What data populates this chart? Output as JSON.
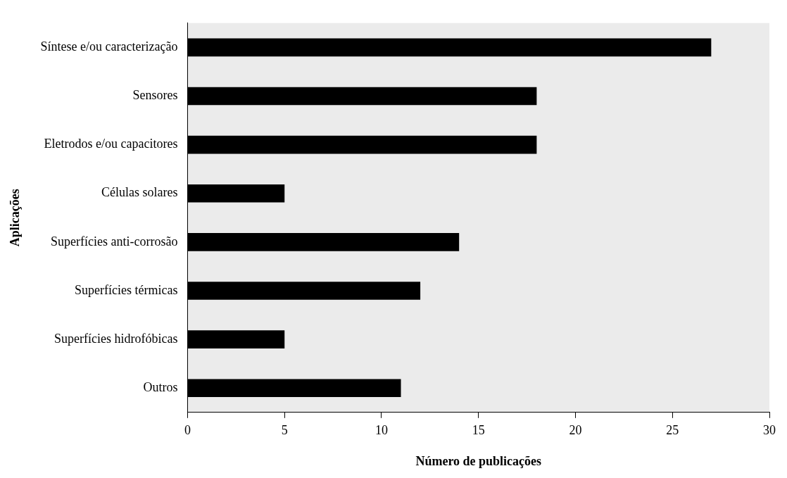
{
  "chart_data": {
    "type": "bar",
    "orientation": "horizontal",
    "xlabel": "Número de publicações",
    "ylabel": "Aplicações",
    "categories": [
      "Síntese e/ou caracterização",
      "Sensores",
      "Eletrodos e/ou capacitores",
      "Células solares",
      "Superfícies anti-corrosão",
      "Superfícies térmicas",
      "Superfícies hidrofóbicas",
      "Outros"
    ],
    "values": [
      27,
      18,
      18,
      5,
      14,
      12,
      5,
      11
    ],
    "color": "#000000",
    "xlim": [
      0,
      30
    ],
    "xticks": [
      0,
      5,
      10,
      15,
      20,
      25,
      30
    ],
    "grid": false,
    "legend": false
  }
}
